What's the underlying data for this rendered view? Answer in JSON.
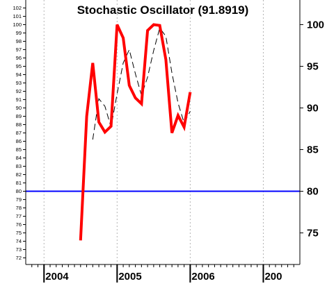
{
  "chart_data": {
    "type": "line",
    "title": "Stochastic Oscillator (91.8919)",
    "xlabel": "",
    "ylabel": "",
    "grid": true,
    "x_ticks": [
      "2004",
      "2005",
      "2006",
      "200"
    ],
    "xlim": [
      "2003-10",
      "2007-07"
    ],
    "ylim": [
      71.5,
      102.5
    ],
    "y_ticks_left": [
      72,
      73,
      74,
      75,
      76,
      77,
      78,
      79,
      80,
      81,
      82,
      83,
      84,
      85,
      86,
      87,
      88,
      89,
      90,
      91,
      92,
      93,
      94,
      95,
      96,
      97,
      98,
      99,
      100,
      101,
      102
    ],
    "y_ticks_right": [
      75,
      80,
      85,
      90,
      95,
      100
    ],
    "reference_line": {
      "value": 80,
      "color": "#0000ff"
    },
    "series": [
      {
        "style": "solid",
        "color": "#ff0000",
        "x": [
          "2004-07",
          "2004-08",
          "2004-09",
          "2004-10",
          "2004-11",
          "2004-12",
          "2005-01",
          "2005-02",
          "2005-03",
          "2005-04",
          "2005-05",
          "2005-06",
          "2005-07",
          "2005-08",
          "2005-09",
          "2005-10",
          "2005-11",
          "2005-12",
          "2006-01"
        ],
        "values": [
          74.1,
          89.0,
          95.4,
          88.3,
          87.1,
          87.8,
          100.0,
          98.4,
          92.7,
          91.2,
          90.5,
          99.3,
          100.0,
          99.9,
          95.8,
          87.0,
          89.1,
          87.7,
          91.9
        ]
      },
      {
        "style": "dashed",
        "color": "#000000",
        "x": [
          "2004-09",
          "2004-10",
          "2004-11",
          "2004-12",
          "2005-01",
          "2005-02",
          "2005-03",
          "2005-04",
          "2005-05",
          "2005-06",
          "2005-07",
          "2005-08",
          "2005-09",
          "2005-10",
          "2005-11",
          "2005-12",
          "2006-01"
        ],
        "values": [
          86.2,
          91.1,
          90.2,
          87.7,
          91.7,
          95.4,
          97.0,
          94.1,
          91.5,
          93.7,
          96.9,
          99.6,
          98.6,
          94.2,
          90.6,
          88.2,
          89.6
        ]
      }
    ]
  }
}
